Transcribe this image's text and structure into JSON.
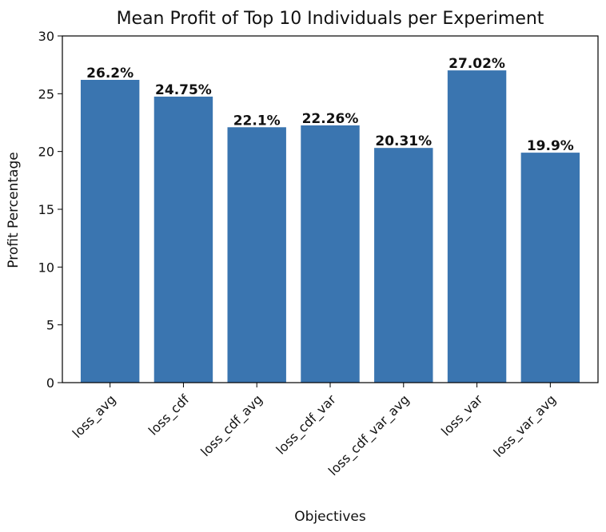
{
  "chart_data": {
    "type": "bar",
    "title": "Mean Profit of Top 10 Individuals per Experiment",
    "xlabel": "Objectives",
    "ylabel": "Profit Percentage",
    "categories": [
      "loss_avg",
      "loss_cdf",
      "loss_cdf_avg",
      "loss_cdf_var",
      "loss_cdf_var_avg",
      "loss_var",
      "loss_var_avg"
    ],
    "values": [
      26.2,
      24.75,
      22.1,
      22.26,
      20.31,
      27.02,
      19.9
    ],
    "data_labels": [
      "26.2%",
      "24.75%",
      "22.1%",
      "22.26%",
      "20.31%",
      "27.02%",
      "19.9%"
    ],
    "ylim": [
      0,
      30
    ],
    "yticks": [
      0,
      5,
      10,
      15,
      20,
      25,
      30
    ],
    "ytick_labels": [
      "0",
      "5",
      "10",
      "15",
      "20",
      "25",
      "30"
    ],
    "grid": false,
    "colors": {
      "bar": "#3a75b0",
      "axis": "#000000"
    }
  }
}
